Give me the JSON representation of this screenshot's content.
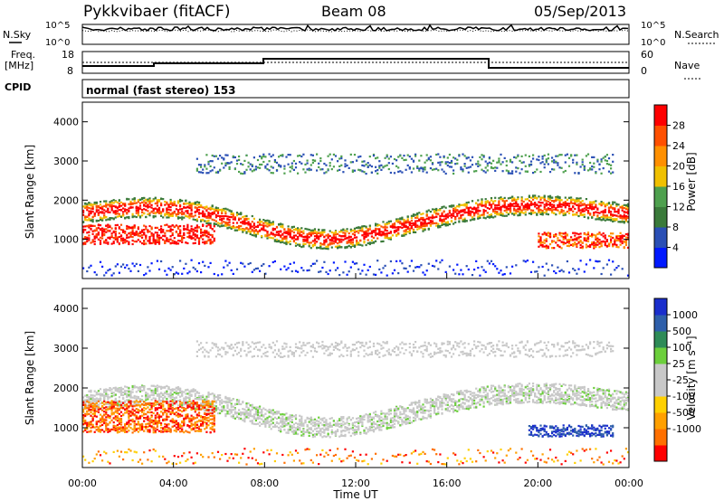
{
  "header": {
    "station": "Pykkvibaer (fitACF)",
    "beam": "Beam 08",
    "date": "05/Sep/2013"
  },
  "ancillary": {
    "nsky_label": "N.Sky",
    "nsearch_label": "N.Search",
    "noise_ticks_left": [
      "10^5",
      "10^0"
    ],
    "noise_ticks_right": [
      "10^5",
      "10^0"
    ],
    "freq_label_1": "Freq.",
    "freq_label_2": "[MHz]",
    "freq_ticks": [
      "18",
      "8"
    ],
    "nave_label": "Nave",
    "nave_ticks": [
      "60",
      "0"
    ],
    "cpid_label": "CPID",
    "cpid_text": "normal (fast stereo) 153"
  },
  "colors": {
    "power_scale": [
      "#0019ff",
      "#2a4fb5",
      "#3a7a3a",
      "#4ea04e",
      "#f0c000",
      "#ff9000",
      "#ff5000",
      "#ff0000"
    ],
    "velocity_scale": [
      "#ff0000",
      "#ff7000",
      "#ffa000",
      "#ffd000",
      "#c8c8c8",
      "#c8c8c8",
      "#6ccf3c",
      "#2e8b57",
      "#2e5faa",
      "#1a2ecc"
    ]
  },
  "chart_data": [
    {
      "type": "heatmap",
      "name": "power",
      "xlabel": "",
      "ylabel": "Slant Range [km]",
      "x_ticks": [
        "00:00",
        "04:00",
        "08:00",
        "12:00",
        "16:00",
        "20:00",
        "00:00"
      ],
      "y_ticks": [
        1000,
        2000,
        3000,
        4000
      ],
      "ylim": [
        0,
        4500
      ],
      "colorbar_label": "Power [dB]",
      "colorbar_ticks": [
        4,
        8,
        12,
        16,
        20,
        24,
        28
      ]
    },
    {
      "type": "heatmap",
      "name": "velocity",
      "xlabel": "Time UT",
      "ylabel": "Slant Range [km]",
      "x_ticks": [
        "00:00",
        "04:00",
        "08:00",
        "12:00",
        "16:00",
        "20:00",
        "00:00"
      ],
      "y_ticks": [
        1000,
        2000,
        3000,
        4000
      ],
      "ylim": [
        0,
        4500
      ],
      "colorbar_label": "Velocity [m s⁻¹]",
      "colorbar_ticks": [
        1000,
        500,
        100,
        25,
        -25,
        -100,
        -500,
        -1000
      ]
    }
  ]
}
